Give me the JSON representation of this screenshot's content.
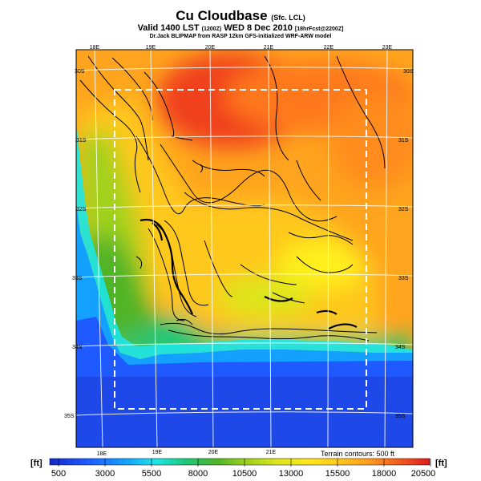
{
  "header": {
    "title": "Cu Cloudbase",
    "title_suffix": "(Sfc. LCL)",
    "valid_line": "Valid 1400 LST",
    "valid_small_1": "(1200Z)",
    "valid_date": "WED 8 Dec 2010",
    "valid_small_2": "[18hrFcst@2200Z]",
    "credit": "Dr.Jack BLIPMAP from RASP 12km GFS-initialized WRF-ARW model"
  },
  "map": {
    "lon_labels_top": [
      "18E",
      "19E",
      "20E",
      "21E",
      "22E",
      "23E"
    ],
    "lon_labels_bottom": [
      "18E",
      "19E",
      "20E",
      "21E"
    ],
    "lat_labels_left": [
      "30S",
      "31S",
      "32S",
      "33S",
      "34S",
      "35S"
    ],
    "lat_labels_right": [
      "30S",
      "31S",
      "32S",
      "33S",
      "34S",
      "35S"
    ],
    "terrain_note": "Terrain contours: 500 ft",
    "inner_domain_boundary": "dashed"
  },
  "colorbar": {
    "unit_left": "[ft]",
    "unit_right": "[ft]",
    "tick_labels": [
      "500",
      "3000",
      "5500",
      "8000",
      "10500",
      "13000",
      "15500",
      "18000",
      "20500"
    ],
    "min_ft": 500,
    "max_ft": 21000,
    "colors": [
      "#1428c8",
      "#1e5aff",
      "#14a0ff",
      "#1ee6e6",
      "#1ec878",
      "#50b428",
      "#a0d21e",
      "#dce61e",
      "#ffe61e",
      "#ffc81e",
      "#ff9b1e",
      "#f05a1e",
      "#dc1e1e"
    ]
  }
}
